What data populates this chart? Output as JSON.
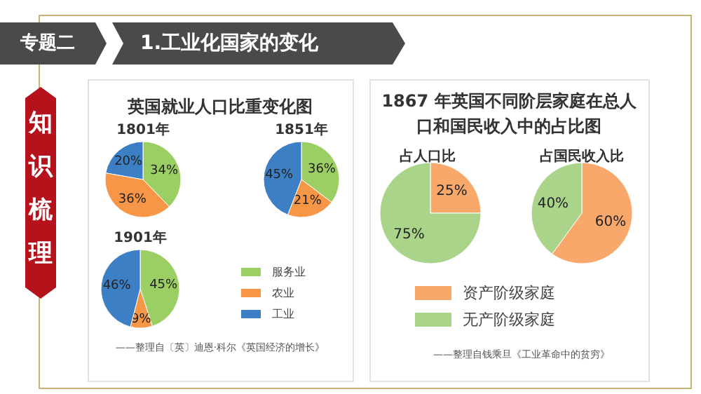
{
  "chart_data": [
    {
      "type": "other",
      "title": "1.工业化国家的变化",
      "annotations": [
        "专题二",
        "知识梳理"
      ]
    },
    {
      "type": "pie",
      "title": "英国就业人口比重变化图",
      "subtitle": "1801年",
      "categories": [
        null,
        null,
        null
      ],
      "values": [
        34,
        36,
        20
      ],
      "colors": [
        "#9bcf63",
        "#f79646",
        "#3c7fc4"
      ],
      "value_labels": [
        "34%",
        "36%",
        "20%"
      ]
    },
    {
      "type": "pie",
      "title": "1851年",
      "categories": [
        null,
        null,
        null
      ],
      "values": [
        36,
        21,
        45
      ],
      "colors": [
        "#9bcf63",
        "#f79646",
        "#3c7fc4"
      ],
      "value_labels": [
        "36%",
        "21%",
        "45%"
      ]
    },
    {
      "type": "pie",
      "title": "1901年",
      "categories": [
        "服务业",
        "农业",
        "工业"
      ],
      "values": [
        45,
        9,
        46
      ],
      "colors": [
        "#9bcf63",
        "#f79646",
        "#3c7fc4"
      ],
      "value_labels": [
        "45%",
        "9%",
        "46%"
      ],
      "legend": "right",
      "annotations": [
        "——整理自〔英〕迪恩·科尔《英国经济的增长》"
      ]
    },
    {
      "type": "pie",
      "title": "1867 年英国不同阶层家庭在总人口和国民收入中的占比图",
      "subtitle": "占人口比",
      "categories": [
        null,
        null
      ],
      "values": [
        25,
        75
      ],
      "colors": [
        "#f8a86a",
        "#a9d48a"
      ],
      "value_labels": [
        "25%",
        "75%"
      ]
    },
    {
      "type": "pie",
      "title": "占国民收入比",
      "categories": [
        "资产阶级家庭",
        "无产阶级家庭"
      ],
      "values": [
        60,
        40
      ],
      "colors": [
        "#f8a86a",
        "#a9d48a"
      ],
      "value_labels": [
        "60%",
        "40%"
      ],
      "legend": "bottom",
      "annotations": [
        "——整理自钱乘旦《工业革命中的贫穷》"
      ]
    }
  ]
}
